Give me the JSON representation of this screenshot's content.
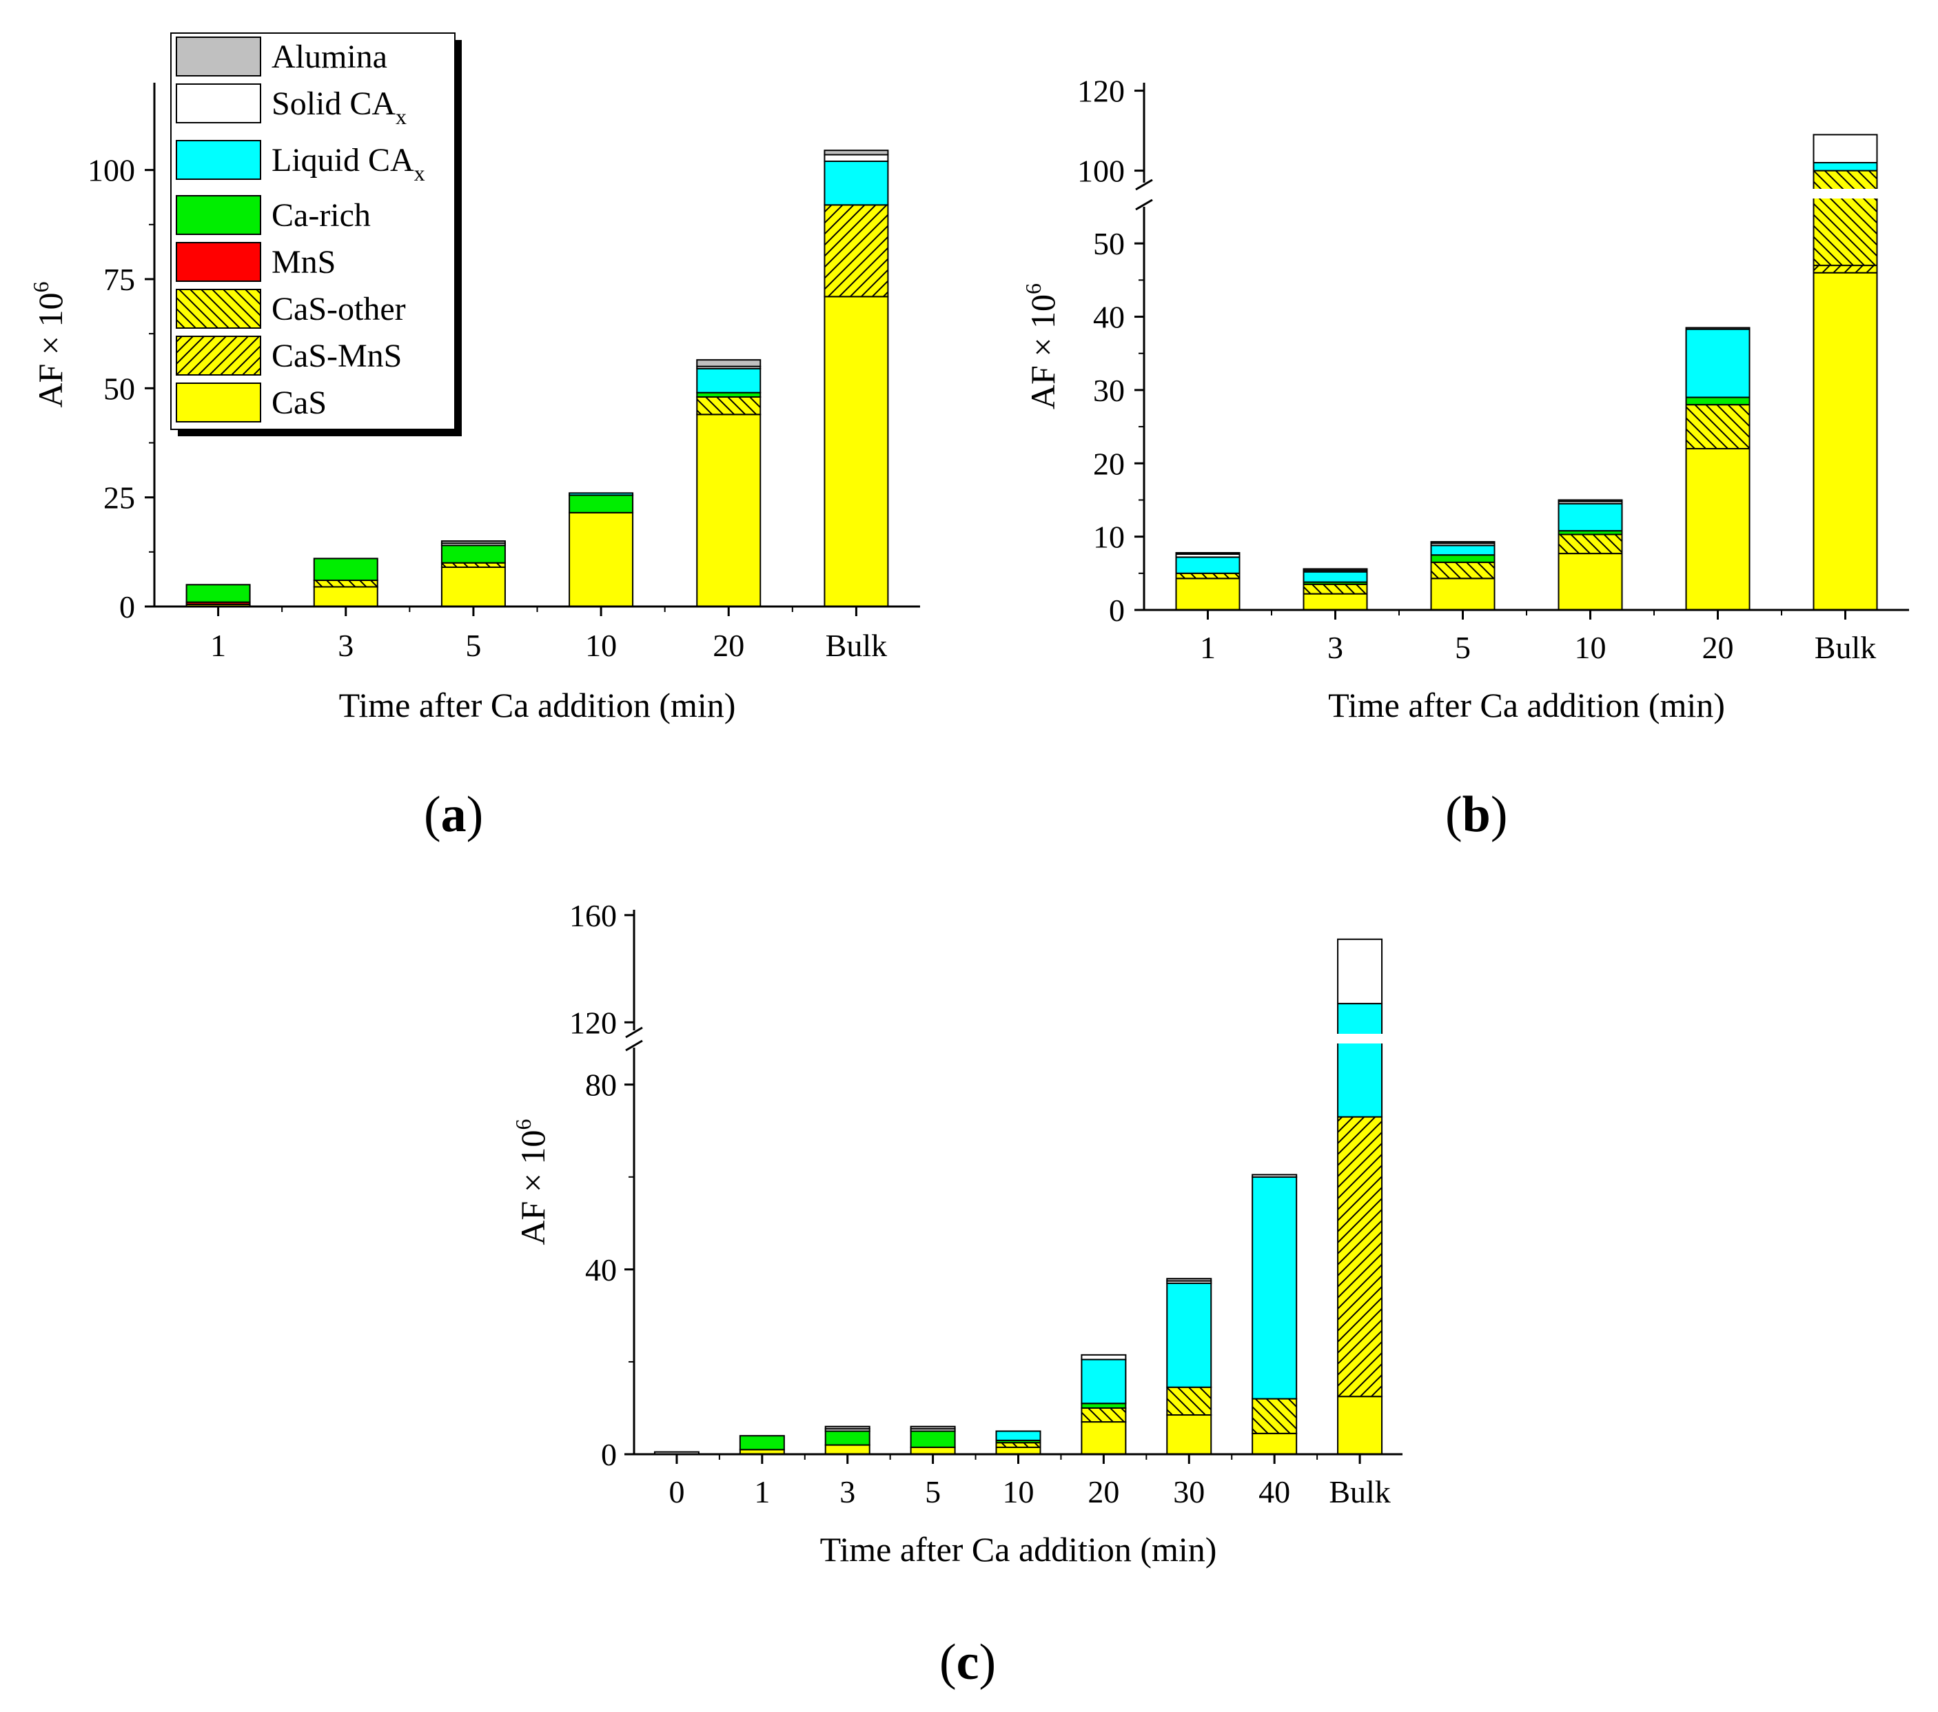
{
  "legend": {
    "items": [
      {
        "key": "alumina",
        "label": "Alumina",
        "sub": ""
      },
      {
        "key": "solid",
        "label": "Solid CA",
        "sub": "x"
      },
      {
        "key": "liquid",
        "label": "Liquid CA",
        "sub": "x"
      },
      {
        "key": "carich",
        "label": "Ca-rich",
        "sub": ""
      },
      {
        "key": "mns",
        "label": "MnS",
        "sub": ""
      },
      {
        "key": "casother",
        "label": "CaS-other",
        "sub": ""
      },
      {
        "key": "casmns",
        "label": "CaS-MnS",
        "sub": ""
      },
      {
        "key": "cas",
        "label": "CaS",
        "sub": ""
      }
    ]
  },
  "colors": {
    "cas": "#ffff00",
    "casmns": "#ffff00",
    "casother": "#ffff00",
    "mns": "#ff0000",
    "carich": "#00ee00",
    "liquid": "#00ffff",
    "solid": "#ffffff",
    "alumina": "#c0c0c0"
  },
  "stack_order": [
    "cas",
    "casmns",
    "casother",
    "mns",
    "carich",
    "liquid",
    "solid",
    "alumina"
  ],
  "chart_data": [
    {
      "panel": "a",
      "panel_label": "a",
      "type": "bar",
      "stacked": true,
      "xlabel": "Time after Ca addition (min)",
      "ylabel": "AF × 10",
      "ylabel_sup": "6",
      "ylim": [
        0,
        120
      ],
      "yticks": [
        0,
        25,
        50,
        75,
        100
      ],
      "axis_break": null,
      "legend_position": "top-left",
      "categories": [
        "1",
        "3",
        "5",
        "10",
        "20",
        "Bulk"
      ],
      "series": [
        {
          "name": "CaS",
          "key": "cas",
          "values": [
            0.5,
            4.5,
            9,
            21.5,
            44,
            71
          ]
        },
        {
          "name": "CaS-MnS",
          "key": "casmns",
          "values": [
            0,
            0,
            0,
            0,
            0,
            21
          ]
        },
        {
          "name": "CaS-other",
          "key": "casother",
          "values": [
            0,
            1.5,
            1,
            0,
            4,
            0
          ]
        },
        {
          "name": "MnS",
          "key": "mns",
          "values": [
            0.5,
            0,
            0,
            0,
            0,
            0
          ]
        },
        {
          "name": "Ca-rich",
          "key": "carich",
          "values": [
            4,
            5,
            4,
            4,
            1,
            0
          ]
        },
        {
          "name": "Liquid CAx",
          "key": "liquid",
          "values": [
            0,
            0,
            0,
            0.5,
            5.5,
            10
          ]
        },
        {
          "name": "Solid CAx",
          "key": "solid",
          "values": [
            0,
            0,
            0.5,
            0,
            0.5,
            1.5
          ]
        },
        {
          "name": "Alumina",
          "key": "alumina",
          "values": [
            0,
            0,
            0.5,
            0,
            1.5,
            1
          ]
        }
      ]
    },
    {
      "panel": "b",
      "panel_label": "b",
      "type": "bar",
      "stacked": true,
      "xlabel": "Time after Ca addition (min)",
      "ylabel": "AF × 10",
      "ylabel_sup": "6",
      "axis_break": {
        "lower": [
          0,
          55
        ],
        "upper": [
          97,
          122
        ]
      },
      "yticks_lower": [
        0,
        10,
        20,
        30,
        40,
        50
      ],
      "yticks_upper": [
        100,
        120
      ],
      "categories": [
        "1",
        "3",
        "5",
        "10",
        "20",
        "Bulk"
      ],
      "series": [
        {
          "name": "CaS",
          "key": "cas",
          "values": [
            4.3,
            2.2,
            4.3,
            7.7,
            22,
            46
          ]
        },
        {
          "name": "CaS-MnS",
          "key": "casmns",
          "values": [
            0,
            0,
            0,
            0,
            0,
            1
          ]
        },
        {
          "name": "CaS-other",
          "key": "casother",
          "values": [
            0.7,
            1.3,
            2.2,
            2.6,
            6,
            53
          ]
        },
        {
          "name": "MnS",
          "key": "mns",
          "values": [
            0,
            0,
            0,
            0,
            0,
            0
          ]
        },
        {
          "name": "Ca-rich",
          "key": "carich",
          "values": [
            0,
            0.3,
            1,
            0.5,
            1,
            0
          ]
        },
        {
          "name": "Liquid CAx",
          "key": "liquid",
          "values": [
            2.2,
            1.4,
            1.3,
            3.7,
            9.3,
            2
          ]
        },
        {
          "name": "Solid CAx",
          "key": "solid",
          "values": [
            0.5,
            0.2,
            0.3,
            0.3,
            0.2,
            7
          ]
        },
        {
          "name": "Alumina",
          "key": "alumina",
          "values": [
            0.1,
            0.2,
            0.2,
            0.2,
            0,
            0
          ]
        }
      ]
    },
    {
      "panel": "c",
      "panel_label": "c",
      "type": "bar",
      "stacked": true,
      "xlabel": "Time after Ca addition (min)",
      "ylabel": "AF × 10",
      "ylabel_sup": "6",
      "axis_break": {
        "lower": [
          0,
          88
        ],
        "upper": [
          117,
          162
        ]
      },
      "yticks_lower": [
        0,
        40,
        80
      ],
      "yticks_upper": [
        120,
        160
      ],
      "categories": [
        "0",
        "1",
        "3",
        "5",
        "10",
        "20",
        "30",
        "40",
        "Bulk"
      ],
      "series": [
        {
          "name": "CaS",
          "key": "cas",
          "values": [
            0,
            1,
            2,
            1.5,
            1.5,
            7,
            8.5,
            4.5,
            12.5
          ]
        },
        {
          "name": "CaS-MnS",
          "key": "casmns",
          "values": [
            0,
            0,
            0,
            0,
            0,
            0,
            0,
            0,
            60.5
          ]
        },
        {
          "name": "CaS-other",
          "key": "casother",
          "values": [
            0,
            0,
            0,
            0,
            1,
            3,
            6,
            7.5,
            0
          ]
        },
        {
          "name": "MnS",
          "key": "mns",
          "values": [
            0,
            0,
            0,
            0,
            0,
            0,
            0,
            0,
            0
          ]
        },
        {
          "name": "Ca-rich",
          "key": "carich",
          "values": [
            0,
            3,
            3,
            3.5,
            0.5,
            1,
            0,
            0,
            0
          ]
        },
        {
          "name": "Liquid CAx",
          "key": "liquid",
          "values": [
            0,
            0,
            0,
            0,
            2,
            9.5,
            22.5,
            48,
            54
          ]
        },
        {
          "name": "Solid CAx",
          "key": "solid",
          "values": [
            0.5,
            0,
            0.5,
            0.5,
            0,
            1,
            0.5,
            0.5,
            24
          ]
        },
        {
          "name": "Alumina",
          "key": "alumina",
          "values": [
            0,
            0,
            0.5,
            0.5,
            0,
            0,
            0.5,
            0,
            0
          ]
        }
      ]
    }
  ]
}
